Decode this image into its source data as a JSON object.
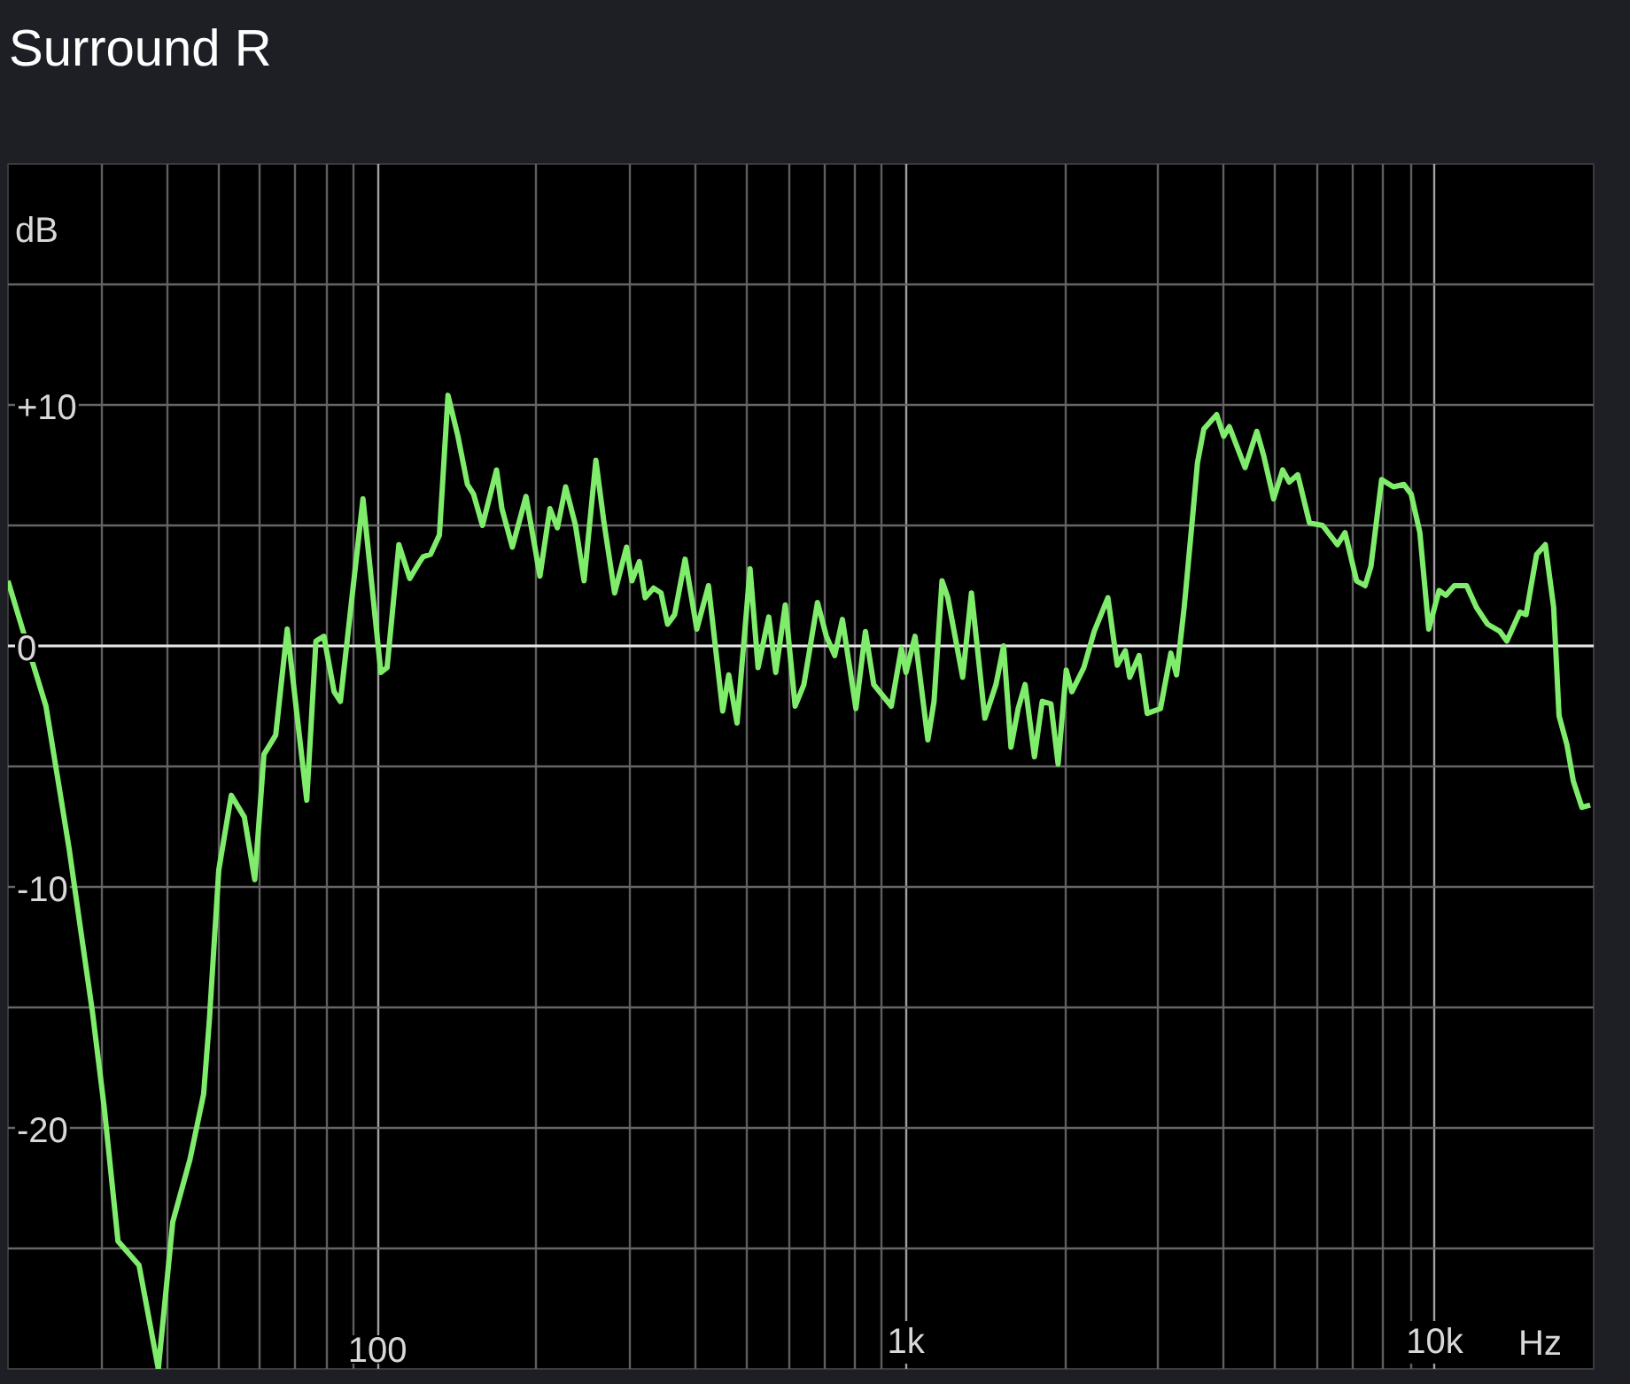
{
  "chart_data": {
    "type": "line",
    "title": "Surround R",
    "xlabel": "Hz",
    "ylabel": "dB",
    "log": "x",
    "grid": true,
    "xlim": [
      20,
      20000
    ],
    "ylim": [
      -30,
      20
    ],
    "xticks": [
      {
        "value": 30,
        "label": null
      },
      {
        "value": 40,
        "label": null
      },
      {
        "value": 50,
        "label": null
      },
      {
        "value": 60,
        "label": null
      },
      {
        "value": 70,
        "label": null
      },
      {
        "value": 80,
        "label": null
      },
      {
        "value": 90,
        "label": null
      },
      {
        "value": 100,
        "label": "100"
      },
      {
        "value": 200,
        "label": null
      },
      {
        "value": 300,
        "label": null
      },
      {
        "value": 400,
        "label": null
      },
      {
        "value": 500,
        "label": null
      },
      {
        "value": 600,
        "label": null
      },
      {
        "value": 700,
        "label": null
      },
      {
        "value": 800,
        "label": null
      },
      {
        "value": 900,
        "label": null
      },
      {
        "value": 1000,
        "label": "1k"
      },
      {
        "value": 2000,
        "label": null
      },
      {
        "value": 3000,
        "label": null
      },
      {
        "value": 4000,
        "label": null
      },
      {
        "value": 5000,
        "label": null
      },
      {
        "value": 6000,
        "label": null
      },
      {
        "value": 7000,
        "label": null
      },
      {
        "value": 8000,
        "label": null
      },
      {
        "value": 9000,
        "label": null
      },
      {
        "value": 10000,
        "label": "10k"
      }
    ],
    "yticks": [
      {
        "value": 15,
        "label": null
      },
      {
        "value": 10,
        "label": "+10"
      },
      {
        "value": 5,
        "label": null
      },
      0,
      {
        "value": -5,
        "label": null
      },
      -10,
      {
        "value": -15,
        "label": null
      },
      -20,
      {
        "value": -25,
        "label": null
      }
    ],
    "ref_lines": [
      {
        "axis": "y",
        "value": 0,
        "color": "#e6e6e6"
      }
    ],
    "x": [
      20,
      22.2,
      23.6,
      24.8,
      26.1,
      27.5,
      28.9,
      30.4,
      32.3,
      35.4,
      38.5,
      41.0,
      44.2,
      46.9,
      48.1,
      50.1,
      52.9,
      56.0,
      58.6,
      61.0,
      64.2,
      67.5,
      73.5,
      76.5,
      79.2,
      82.8,
      85.1,
      93.9,
      101.5,
      104.3,
      109.8,
      115.1,
      120.3,
      122,
      126,
      131,
      136,
      142,
      148,
      152,
      158,
      168,
      172,
      180,
      191,
      203,
      212,
      219,
      227,
      237,
      246,
      259,
      268,
      281,
      296,
      303,
      313,
      321,
      333,
      344,
      354,
      365,
      382,
      402,
      423,
      450,
      462,
      479,
      507,
      525,
      550,
      567,
      591,
      617,
      641,
      680,
      707,
      733,
      758,
      804,
      838,
      869,
      938,
      980,
      1000,
      1040,
      1100,
      1130,
      1170,
      1200,
      1280,
      1330,
      1410,
      1480,
      1530,
      1580,
      1630,
      1680,
      1750,
      1810,
      1880,
      1940,
      2010,
      2060,
      2170,
      2270,
      2410,
      2510,
      2600,
      2650,
      2760,
      2860,
      3030,
      3170,
      3250,
      3360,
      3490,
      3560,
      3660,
      3870,
      3990,
      4090,
      4380,
      4610,
      4750,
      4960,
      5160,
      5310,
      5510,
      5800,
      6140,
      6550,
      6770,
      7120,
      7390,
      7580,
      7940,
      8360,
      8750,
      9030,
      9380,
      9750,
      10200,
      10500,
      10900,
      11500,
      12000,
      12600,
      13300,
      13700,
      14500,
      14900,
      15600,
      16200,
      16800,
      17200,
      17800,
      18300,
      19000,
      19700
    ],
    "series": [
      {
        "color": "#80ec6c",
        "values": [
          2.7,
          -0.6,
          -2.5,
          -5.4,
          -8.4,
          -11.9,
          -15.2,
          -19.1,
          -24.7,
          -25.7,
          -30,
          -23.9,
          -21.3,
          -18.6,
          -15.5,
          -9.3,
          -6.2,
          -7.1,
          -9.7,
          -4.5,
          -3.7,
          0.7,
          -6.4,
          0.2,
          0.4,
          -1.9,
          -2.3,
          6.1,
          -1.1,
          -0.9,
          4.2,
          2.8,
          3.5,
          3.7,
          3.8,
          4.6,
          10.4,
          8.7,
          6.7,
          6.3,
          5.0,
          7.3,
          5.7,
          4.1,
          6.2,
          2.9,
          5.7,
          4.9,
          6.6,
          5.0,
          2.7,
          7.7,
          5.2,
          2.2,
          4.1,
          2.7,
          3.5,
          2.0,
          2.4,
          2.2,
          0.9,
          1.3,
          3.6,
          0.7,
          2.5,
          -2.7,
          -1.2,
          -3.2,
          3.2,
          -0.9,
          1.2,
          -1.1,
          1.7,
          -2.5,
          -1.6,
          1.8,
          0.4,
          -0.4,
          1.1,
          -2.6,
          0.6,
          -1.6,
          -2.5,
          -0.1,
          -1.1,
          0.4,
          -3.9,
          -2.3,
          2.7,
          2.0,
          -1.3,
          2.2,
          -3.0,
          -1.6,
          0.0,
          -4.2,
          -2.6,
          -1.6,
          -4.6,
          -2.3,
          -2.4,
          -4.9,
          -1.0,
          -1.9,
          -0.9,
          0.6,
          2.0,
          -0.8,
          -0.2,
          -1.3,
          -0.4,
          -2.8,
          -2.6,
          -0.3,
          -1.2,
          1.6,
          5.5,
          7.6,
          9.0,
          9.6,
          8.7,
          9.1,
          7.4,
          8.9,
          7.9,
          6.1,
          7.3,
          6.8,
          7.1,
          5.1,
          5.0,
          4.2,
          4.7,
          2.7,
          2.5,
          3.3,
          6.9,
          6.6,
          6.7,
          6.3,
          4.7,
          0.7,
          2.3,
          2.1,
          2.5,
          2.5,
          1.6,
          0.9,
          0.6,
          0.2,
          1.4,
          1.3,
          3.8,
          4.2,
          1.6,
          -2.9,
          -4.1,
          -5.6,
          -6.7,
          -6.6
        ]
      }
    ]
  }
}
